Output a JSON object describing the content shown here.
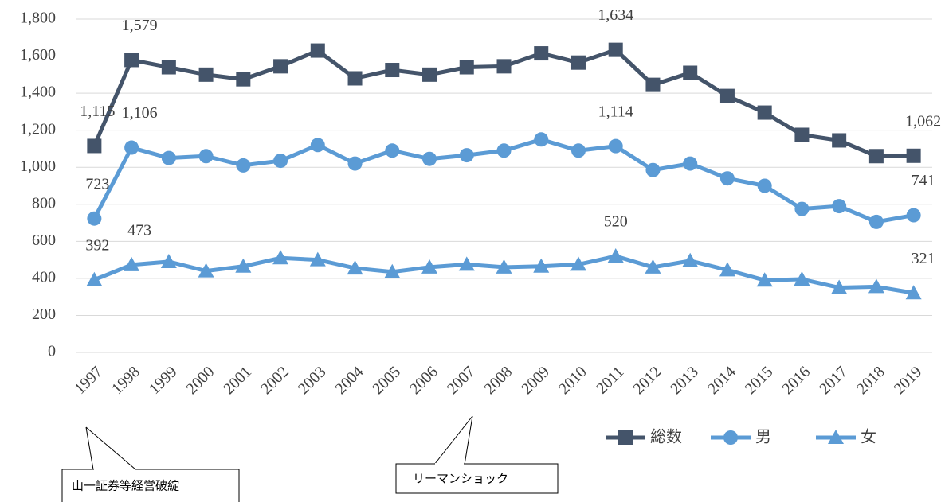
{
  "chart_data": {
    "type": "line",
    "categories": [
      "1997",
      "1998",
      "1999",
      "2000",
      "2001",
      "2002",
      "2003",
      "2004",
      "2005",
      "2006",
      "2007",
      "2008",
      "2009",
      "2010",
      "2011",
      "2012",
      "2013",
      "2014",
      "2015",
      "2016",
      "2017",
      "2018",
      "2019"
    ],
    "series": [
      {
        "name": "総数",
        "color": "#44546a",
        "marker": "square",
        "values": [
          1115,
          1579,
          1540,
          1500,
          1475,
          1545,
          1630,
          1480,
          1525,
          1500,
          1540,
          1545,
          1615,
          1565,
          1634,
          1445,
          1510,
          1385,
          1295,
          1175,
          1145,
          1060,
          1062
        ],
        "value_labels": [
          "1,115",
          "1,579",
          null,
          null,
          null,
          null,
          null,
          null,
          null,
          null,
          null,
          null,
          null,
          null,
          "1,634",
          null,
          null,
          null,
          null,
          null,
          null,
          null,
          "1,062"
        ]
      },
      {
        "name": "男",
        "color": "#5b9bd5",
        "marker": "circle",
        "values": [
          723,
          1106,
          1050,
          1060,
          1010,
          1035,
          1120,
          1020,
          1090,
          1045,
          1065,
          1090,
          1150,
          1090,
          1114,
          985,
          1020,
          940,
          900,
          775,
          790,
          705,
          741
        ],
        "value_labels": [
          "723",
          "1,106",
          null,
          null,
          null,
          null,
          null,
          null,
          null,
          null,
          null,
          null,
          null,
          null,
          "1,114",
          null,
          null,
          null,
          null,
          null,
          null,
          null,
          "741"
        ]
      },
      {
        "name": "女",
        "color": "#5b9bd5",
        "marker": "triangle",
        "values": [
          392,
          473,
          490,
          440,
          465,
          510,
          500,
          455,
          435,
          460,
          475,
          460,
          465,
          475,
          520,
          460,
          495,
          445,
          390,
          395,
          350,
          355,
          321
        ],
        "value_labels": [
          "392",
          "473",
          null,
          null,
          null,
          null,
          null,
          null,
          null,
          null,
          null,
          null,
          null,
          null,
          "520",
          null,
          null,
          null,
          null,
          null,
          null,
          null,
          "321"
        ]
      }
    ],
    "ylim": [
      0,
      1800
    ],
    "yticks": [
      0,
      200,
      400,
      600,
      800,
      {
        "value": 1000,
        "label": "1,000"
      },
      {
        "value": 1200,
        "label": "1,200"
      },
      {
        "value": 1400,
        "label": "1,400"
      },
      {
        "value": 1600,
        "label": "1,600"
      },
      {
        "value": 1800,
        "label": "1,800"
      }
    ],
    "grid": true,
    "legend": "bottom",
    "annotations": [
      "山一証券等経営破綻",
      "リーマンショック"
    ]
  }
}
